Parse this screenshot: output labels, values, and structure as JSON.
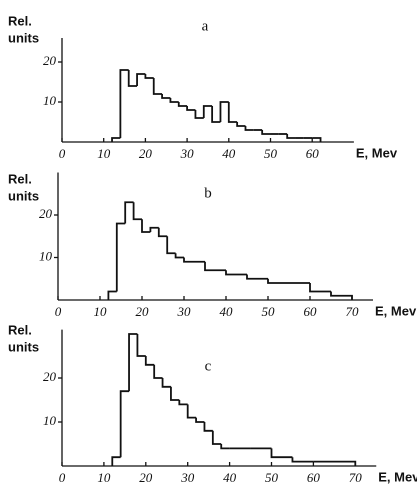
{
  "chart_data": [
    {
      "type": "histogram",
      "title": "a",
      "ylabel": [
        "Rel.",
        "units"
      ],
      "xlabel": "E, Mev",
      "bins": [
        12,
        14,
        16,
        18,
        20,
        22,
        24,
        26,
        28,
        30,
        32,
        34,
        36,
        38,
        40,
        42,
        44,
        46,
        48,
        50,
        52,
        54,
        56,
        58,
        60,
        62
      ],
      "counts": [
        1,
        18,
        14,
        17,
        16,
        12,
        11,
        10,
        9,
        8,
        6,
        9,
        5,
        10,
        5,
        4,
        3,
        3,
        2,
        2,
        2,
        1,
        1,
        1,
        1
      ],
      "xlim": [
        0,
        70
      ],
      "xticks": [
        0,
        10,
        20,
        30,
        40,
        50,
        60
      ],
      "ylim": [
        0,
        26
      ],
      "yticks": [
        10,
        20
      ],
      "color": "#111111"
    },
    {
      "type": "histogram",
      "title": "b",
      "ylabel": [
        "Rel.",
        "units"
      ],
      "xlabel": "E, Mev",
      "bins": [
        12,
        14,
        16,
        18,
        20,
        22,
        24,
        26,
        28,
        30,
        35,
        40,
        45,
        50,
        55,
        60,
        65,
        70
      ],
      "counts": [
        2,
        18,
        23,
        19,
        16,
        17,
        15,
        11,
        10,
        9,
        7,
        6,
        5,
        4,
        4,
        2,
        1
      ],
      "xlim": [
        0,
        75
      ],
      "xticks": [
        0,
        10,
        20,
        30,
        40,
        50,
        60,
        70
      ],
      "ylim": [
        0,
        30
      ],
      "yticks": [
        10,
        20
      ],
      "color": "#111111"
    },
    {
      "type": "histogram",
      "title": "c",
      "ylabel": [
        "Rel.",
        "units"
      ],
      "xlabel": "E, Mev",
      "bins": [
        12,
        14,
        16,
        18,
        20,
        22,
        24,
        26,
        28,
        30,
        32,
        34,
        36,
        38,
        40,
        45,
        50,
        55,
        60,
        70
      ],
      "counts": [
        2,
        17,
        30,
        25,
        23,
        20,
        18,
        15,
        14,
        11,
        10,
        8,
        5,
        4,
        4,
        4,
        2,
        1,
        1
      ],
      "xlim": [
        0,
        75
      ],
      "xticks": [
        0,
        10,
        20,
        30,
        40,
        50,
        60,
        70
      ],
      "ylim": [
        0,
        31
      ],
      "yticks": [
        10,
        20
      ],
      "color": "#111111"
    }
  ]
}
